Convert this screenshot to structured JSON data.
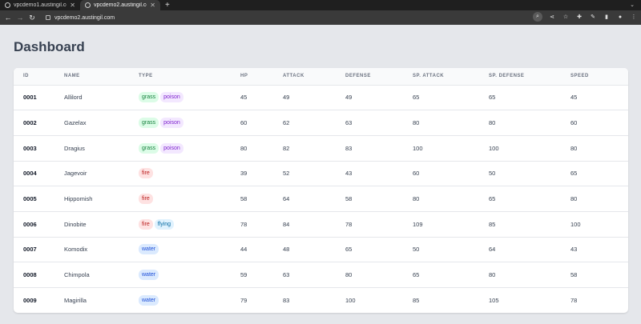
{
  "browser": {
    "tabs": [
      {
        "title": "vpcdemo1.austingil.com",
        "active": false
      },
      {
        "title": "vpcdemo2.austingil.com",
        "active": true
      }
    ],
    "new_tab_glyph": "+",
    "url": "vpcdemo2.austingil.com",
    "icons": [
      "back-icon",
      "forward-icon",
      "reload-icon",
      "search-icon",
      "share-icon",
      "star-icon",
      "extensions-icon",
      "pin-icon",
      "sidepanel-icon",
      "profile-icon",
      "menu-icon"
    ]
  },
  "page": {
    "title": "Dashboard"
  },
  "table": {
    "headers": [
      "ID",
      "NAME",
      "TYPE",
      "HP",
      "ATTACK",
      "DEFENSE",
      "SP. ATTACK",
      "SP. DEFENSE",
      "SPEED"
    ],
    "rows": [
      {
        "id": "0001",
        "name": "Allilord",
        "types": [
          "grass",
          "poison"
        ],
        "hp": "45",
        "attack": "49",
        "defense": "49",
        "sp_attack": "65",
        "sp_defense": "65",
        "speed": "45"
      },
      {
        "id": "0002",
        "name": "Gazelax",
        "types": [
          "grass",
          "poison"
        ],
        "hp": "60",
        "attack": "62",
        "defense": "63",
        "sp_attack": "80",
        "sp_defense": "80",
        "speed": "60"
      },
      {
        "id": "0003",
        "name": "Dragius",
        "types": [
          "grass",
          "poison"
        ],
        "hp": "80",
        "attack": "82",
        "defense": "83",
        "sp_attack": "100",
        "sp_defense": "100",
        "speed": "80"
      },
      {
        "id": "0004",
        "name": "Jagevoir",
        "types": [
          "fire"
        ],
        "hp": "39",
        "attack": "52",
        "defense": "43",
        "sp_attack": "60",
        "sp_defense": "50",
        "speed": "65"
      },
      {
        "id": "0005",
        "name": "Hippomish",
        "types": [
          "fire"
        ],
        "hp": "58",
        "attack": "64",
        "defense": "58",
        "sp_attack": "80",
        "sp_defense": "65",
        "speed": "80"
      },
      {
        "id": "0006",
        "name": "Dinobite",
        "types": [
          "fire",
          "flying"
        ],
        "hp": "78",
        "attack": "84",
        "defense": "78",
        "sp_attack": "109",
        "sp_defense": "85",
        "speed": "100"
      },
      {
        "id": "0007",
        "name": "Komodix",
        "types": [
          "water"
        ],
        "hp": "44",
        "attack": "48",
        "defense": "65",
        "sp_attack": "50",
        "sp_defense": "64",
        "speed": "43"
      },
      {
        "id": "0008",
        "name": "Chimpola",
        "types": [
          "water"
        ],
        "hp": "59",
        "attack": "63",
        "defense": "80",
        "sp_attack": "65",
        "sp_defense": "80",
        "speed": "58"
      },
      {
        "id": "0009",
        "name": "Magirilla",
        "types": [
          "water"
        ],
        "hp": "79",
        "attack": "83",
        "defense": "100",
        "sp_attack": "85",
        "sp_defense": "105",
        "speed": "78"
      }
    ]
  },
  "colors": {
    "grass": "#dcfce7",
    "poison": "#f3e8ff",
    "fire": "#fee2e2",
    "flying": "#e0f2fe",
    "water": "#dbeafe"
  }
}
